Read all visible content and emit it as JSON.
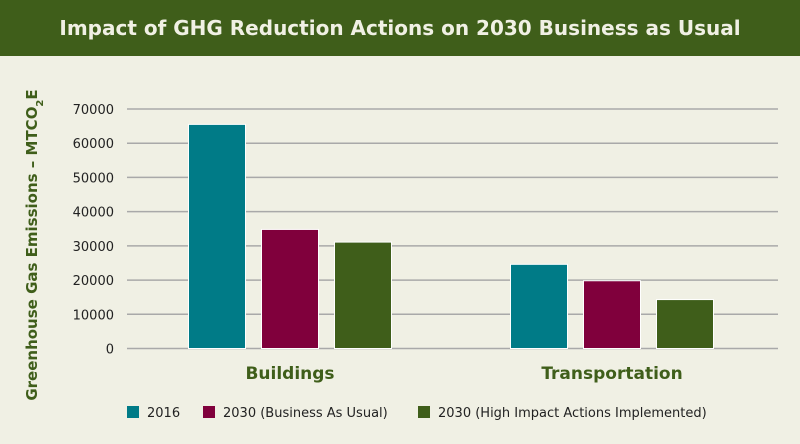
{
  "chart_data": {
    "type": "bar",
    "title": "Impact of GHG Reduction Actions on 2030 Business as Usual",
    "ylabel": "Greenhouse Gas Emissions – MTCO",
    "ylabel_subscript": "2",
    "ylabel_suffix": "E",
    "xlabel": "",
    "categories": [
      "Buildings",
      "Transportation"
    ],
    "ylim": [
      0,
      70000
    ],
    "yticks": [
      0,
      10000,
      20000,
      30000,
      40000,
      50000,
      60000,
      70000
    ],
    "grid": true,
    "legend_position": "bottom",
    "series": [
      {
        "name": "2016",
        "color": "#007b87",
        "values": [
          65500,
          24600
        ]
      },
      {
        "name": "2030 (Business As Usual)",
        "color": "#80003c",
        "values": [
          34800,
          19800
        ]
      },
      {
        "name": "2030 (High Impact Actions Implemented)",
        "color": "#3f5e1a",
        "values": [
          31100,
          14300
        ]
      }
    ]
  }
}
